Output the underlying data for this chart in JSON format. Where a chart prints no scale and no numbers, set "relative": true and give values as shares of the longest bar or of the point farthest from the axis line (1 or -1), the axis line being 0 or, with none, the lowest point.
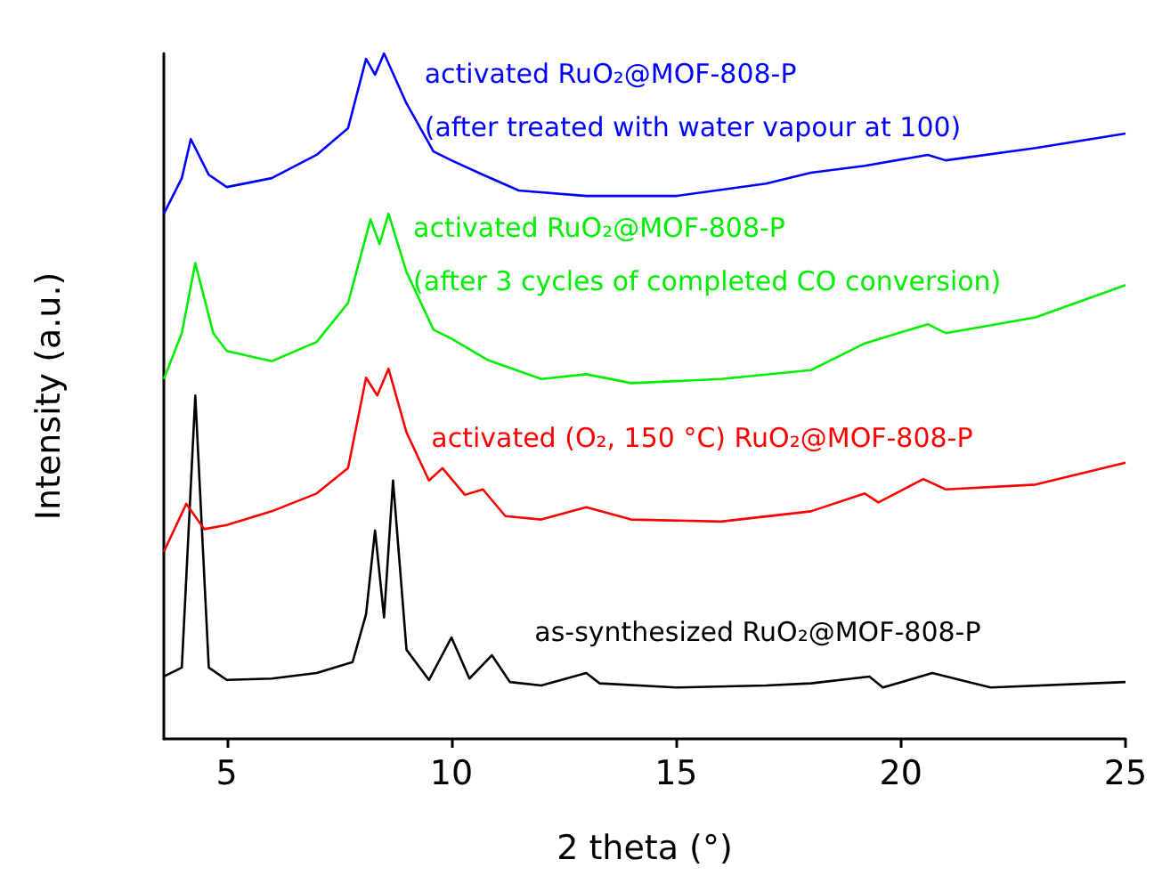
{
  "chart_data": {
    "type": "line",
    "relative": true,
    "xlabel": "2 theta (°)",
    "ylabel": "Intensity (a.u.)",
    "xlim": [
      3.6,
      25
    ],
    "xticks": [
      5,
      10,
      15,
      20,
      25
    ],
    "grid": false,
    "legend": false,
    "marker": "none",
    "line_style": "solid",
    "series": [
      {
        "name": "as-synthesized RuO₂@MOF-808-P",
        "color": "#000000",
        "x": [
          3.6,
          4.0,
          4.3,
          4.6,
          5,
          6,
          7,
          7.8,
          8.1,
          8.3,
          8.5,
          8.7,
          9.0,
          9.5,
          10.0,
          10.4,
          10.9,
          11.3,
          12,
          13,
          13.3,
          15,
          17,
          18,
          19.3,
          19.6,
          20.7,
          22,
          25
        ],
        "values": [
          0.091,
          0.104,
          0.501,
          0.104,
          0.086,
          0.088,
          0.096,
          0.112,
          0.182,
          0.304,
          0.177,
          0.377,
          0.13,
          0.086,
          0.148,
          0.088,
          0.122,
          0.083,
          0.078,
          0.096,
          0.081,
          0.075,
          0.078,
          0.081,
          0.091,
          0.075,
          0.096,
          0.075,
          0.083
        ]
      },
      {
        "name": "activated (O₂, 150 °C) RuO₂@MOF-808-P",
        "color": "#ff0000",
        "x": [
          3.6,
          4.1,
          4.5,
          5,
          6,
          7,
          7.7,
          8.1,
          8.35,
          8.6,
          9.0,
          9.5,
          9.8,
          10.3,
          10.7,
          11.2,
          12,
          13,
          14,
          16,
          18,
          19.2,
          19.5,
          20.5,
          21,
          23,
          25
        ],
        "values": [
          0.273,
          0.343,
          0.306,
          0.312,
          0.332,
          0.358,
          0.395,
          0.527,
          0.501,
          0.54,
          0.447,
          0.377,
          0.395,
          0.356,
          0.364,
          0.325,
          0.32,
          0.338,
          0.32,
          0.317,
          0.332,
          0.358,
          0.345,
          0.379,
          0.364,
          0.371,
          0.403
        ]
      },
      {
        "name": "activated RuO₂@MOF-808-P\n(after 3 cycles of completed CO conversion)",
        "color": "#00ee00",
        "x": [
          3.6,
          4.0,
          4.3,
          4.7,
          5,
          6,
          7,
          7.7,
          8.2,
          8.4,
          8.6,
          9.0,
          9.6,
          10.0,
          10.8,
          12,
          13,
          14,
          16,
          18,
          19.2,
          20.6,
          21,
          23,
          25
        ],
        "values": [
          0.525,
          0.592,
          0.694,
          0.592,
          0.566,
          0.551,
          0.579,
          0.636,
          0.758,
          0.722,
          0.766,
          0.681,
          0.597,
          0.584,
          0.553,
          0.525,
          0.532,
          0.519,
          0.525,
          0.538,
          0.577,
          0.605,
          0.592,
          0.615,
          0.662
        ]
      },
      {
        "name": "activated RuO₂@MOF-808-P\n(after treated with water vapour at 100)",
        "color": "#0000ff",
        "x": [
          3.6,
          4.0,
          4.2,
          4.6,
          5,
          6,
          7,
          7.7,
          8.1,
          8.3,
          8.5,
          9.0,
          9.6,
          10.0,
          10.7,
          11.5,
          13,
          15,
          17,
          18,
          19.2,
          20.6,
          21,
          23,
          25
        ],
        "values": [
          0.766,
          0.818,
          0.875,
          0.823,
          0.805,
          0.818,
          0.852,
          0.891,
          0.992,
          0.969,
          1,
          0.927,
          0.857,
          0.844,
          0.823,
          0.8,
          0.792,
          0.792,
          0.81,
          0.826,
          0.836,
          0.852,
          0.844,
          0.862,
          0.883
        ]
      }
    ]
  }
}
